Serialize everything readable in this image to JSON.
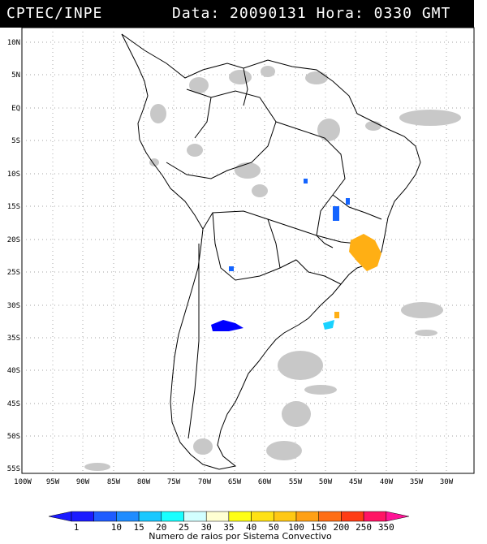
{
  "header": {
    "org": "CPTEC/INPE",
    "data_label": "Data:",
    "date": "20090131",
    "hora_label": "Hora:",
    "time": "0330",
    "tz": "GMT"
  },
  "map": {
    "lat_labels": [
      "10N",
      "5N",
      "EQ",
      "5S",
      "10S",
      "15S",
      "20S",
      "25S",
      "30S",
      "35S",
      "40S",
      "45S",
      "50S",
      "55S"
    ],
    "lon_labels": [
      "100W",
      "95W",
      "90W",
      "85W",
      "80W",
      "75W",
      "70W",
      "65W",
      "60W",
      "55W",
      "50W",
      "45W",
      "40W",
      "35W",
      "30W"
    ],
    "cloud_color": "#c8c8c8",
    "coast_color": "#000000"
  },
  "legend": {
    "caption": "Numero de raios por Sistema Convectivo",
    "values": [
      "1",
      "10",
      "15",
      "20",
      "25",
      "30",
      "35",
      "40",
      "50",
      "100",
      "150",
      "200",
      "250",
      "350"
    ],
    "colors": [
      "#1a1aff",
      "#1f5cff",
      "#1f8cff",
      "#19c8ff",
      "#19ffff",
      "#d2ffff",
      "#ffffd2",
      "#ffff14",
      "#ffe114",
      "#ffc814",
      "#ffa014",
      "#ff6e14",
      "#ff3c14",
      "#ff1464"
    ],
    "end_left_color": "#1a1aff",
    "end_right_color": "#ff1496"
  },
  "storms": {
    "blue": "#0000ff",
    "mid_blue": "#1464ff",
    "cyan": "#19d2ff",
    "orange": "#ffaf14"
  }
}
